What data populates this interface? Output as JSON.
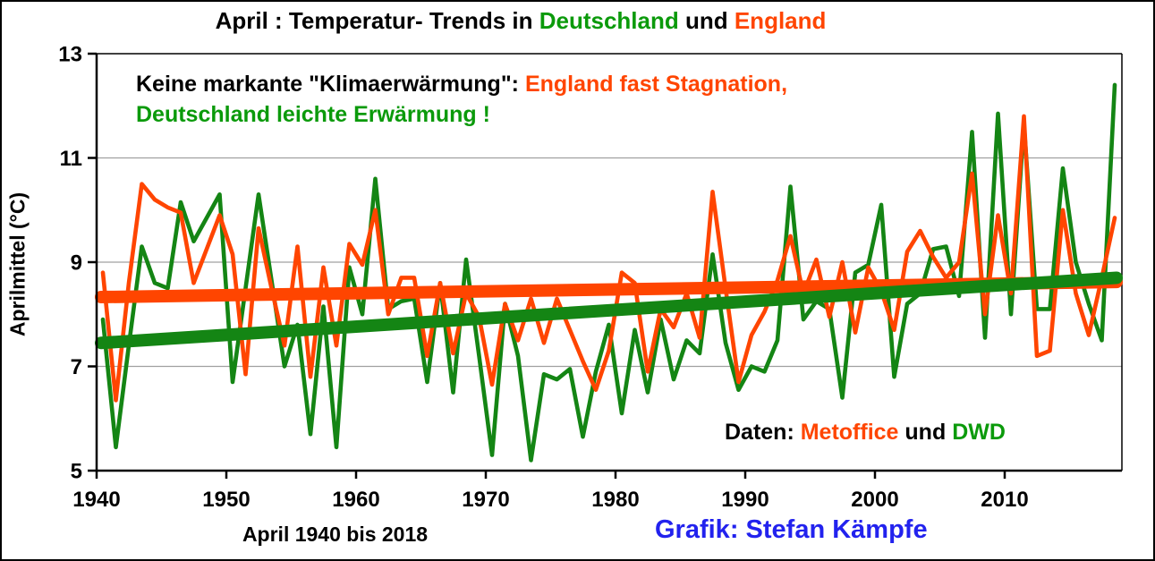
{
  "title": {
    "part1": "April : Temperatur- Trends in ",
    "part2": "Deutschland",
    "part3": " und ",
    "part4": "England"
  },
  "annotation": {
    "line1_black": "Keine markante \"Klimaerwärmung\": ",
    "line1_orange": "England fast Stagnation,",
    "line2_green": "Deutschland leichte Erwärmung !"
  },
  "daten_note": {
    "part1": "Daten: ",
    "part2": "Metoffice",
    "part3": " und ",
    "part4": "DWD"
  },
  "xaxis_sublabel": "April 1940 bis 2018",
  "grafik_credit": "Grafik: Stefan Kämpfe",
  "ylabel": "Aprilmittel (°C)",
  "colors": {
    "deutschland_green": "#148514",
    "england_orange": "#ff4500",
    "credit_blue": "#2222ee",
    "gridline_gray": "#a0a0a0",
    "axis_black": "#000000"
  },
  "chart_data": {
    "type": "line",
    "title": "April : Temperatur- Trends in Deutschland und England",
    "xlabel": "April 1940 bis 2018",
    "ylabel": "Aprilmittel (°C)",
    "x_range": [
      1940,
      2018
    ],
    "x_step": 1,
    "ylim": [
      5,
      13
    ],
    "yticks": [
      5,
      7,
      9,
      11,
      13
    ],
    "xticks": [
      1940,
      1950,
      1960,
      1970,
      1980,
      1990,
      2000,
      2010
    ],
    "gridlines_at": [
      7,
      9,
      11
    ],
    "legend": "none (series identified by colored text annotations)",
    "series": [
      {
        "name": "Deutschland (DWD)",
        "color": "#148514",
        "values": [
          7.9,
          5.45,
          7.4,
          9.3,
          8.6,
          8.5,
          10.15,
          9.4,
          9.85,
          10.3,
          6.7,
          8.5,
          10.3,
          8.65,
          7.0,
          7.8,
          5.7,
          8.15,
          5.45,
          8.9,
          8.0,
          10.6,
          8.1,
          8.25,
          8.3,
          6.7,
          8.6,
          6.5,
          9.05,
          7.2,
          5.3,
          8.2,
          7.2,
          5.2,
          6.85,
          6.75,
          6.95,
          5.65,
          6.9,
          7.8,
          6.1,
          7.7,
          6.5,
          7.9,
          6.75,
          7.5,
          7.25,
          9.15,
          7.45,
          6.55,
          7.0,
          6.9,
          7.5,
          10.45,
          7.9,
          8.25,
          8.1,
          6.4,
          8.8,
          8.95,
          10.1,
          6.8,
          8.2,
          8.4,
          9.25,
          9.3,
          8.35,
          11.5,
          7.55,
          11.85,
          8.0,
          11.65,
          8.1,
          8.1,
          10.8,
          9.0,
          8.2,
          7.5,
          12.4
        ]
      },
      {
        "name": "England (Metoffice)",
        "color": "#ff4500",
        "values": [
          8.8,
          6.35,
          8.6,
          10.5,
          10.2,
          10.05,
          9.95,
          8.6,
          9.25,
          9.9,
          9.15,
          6.85,
          9.65,
          8.5,
          7.4,
          9.3,
          6.8,
          8.9,
          7.4,
          9.35,
          8.95,
          10.0,
          8.0,
          8.7,
          8.7,
          7.2,
          8.6,
          7.25,
          8.4,
          7.95,
          6.65,
          8.2,
          7.5,
          8.3,
          7.45,
          8.3,
          7.7,
          7.1,
          6.55,
          7.3,
          8.8,
          8.6,
          6.9,
          8.1,
          7.75,
          8.4,
          7.55,
          10.35,
          8.5,
          6.7,
          7.6,
          8.05,
          8.65,
          9.5,
          8.4,
          9.05,
          7.95,
          9.0,
          7.65,
          8.9,
          8.45,
          7.7,
          9.2,
          9.6,
          9.1,
          8.7,
          9.0,
          10.7,
          8.0,
          9.9,
          8.4,
          11.8,
          7.2,
          7.3,
          10.0,
          8.4,
          7.6,
          8.7,
          9.85
        ]
      }
    ],
    "trends": [
      {
        "name": "England linear trend",
        "color": "#ff4500",
        "start_value": 8.33,
        "end_value": 8.62
      },
      {
        "name": "Deutschland linear trend",
        "color": "#148514",
        "start_value": 7.45,
        "end_value": 8.7
      }
    ]
  }
}
